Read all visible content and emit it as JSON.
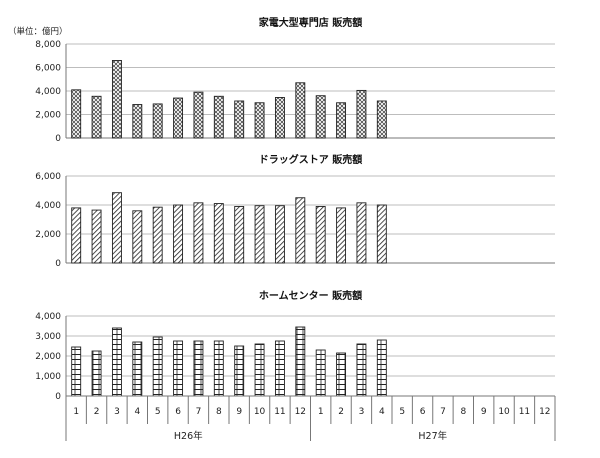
{
  "unit_label": "（単位：億円）",
  "chart_data": [
    {
      "type": "bar",
      "title": "家電大型専門店 販売額",
      "categories": [
        "1",
        "2",
        "3",
        "4",
        "5",
        "6",
        "7",
        "8",
        "9",
        "10",
        "11",
        "12",
        "1",
        "2",
        "3",
        "4",
        "5",
        "6",
        "7",
        "8",
        "9",
        "10",
        "11",
        "12"
      ],
      "values": [
        4100,
        3550,
        6600,
        2850,
        2900,
        3400,
        3900,
        3550,
        3150,
        3000,
        3450,
        4700,
        3600,
        3000,
        4050,
        3150,
        null,
        null,
        null,
        null,
        null,
        null,
        null,
        null
      ],
      "ylim": [
        0,
        8000
      ],
      "yticks": [
        "0",
        "2,000",
        "4,000",
        "6,000",
        "8,000"
      ],
      "ytick_values": [
        0,
        2000,
        4000,
        6000,
        8000
      ],
      "pattern": "crosshatch",
      "grid": true
    },
    {
      "type": "bar",
      "title": "ドラッグストア 販売額",
      "categories": [
        "1",
        "2",
        "3",
        "4",
        "5",
        "6",
        "7",
        "8",
        "9",
        "10",
        "11",
        "12",
        "1",
        "2",
        "3",
        "4",
        "5",
        "6",
        "7",
        "8",
        "9",
        "10",
        "11",
        "12"
      ],
      "values": [
        3800,
        3650,
        4850,
        3600,
        3850,
        4000,
        4150,
        4100,
        3900,
        3950,
        3950,
        4500,
        3900,
        3800,
        4150,
        4000,
        null,
        null,
        null,
        null,
        null,
        null,
        null,
        null
      ],
      "ylim": [
        0,
        6000
      ],
      "yticks": [
        "0",
        "2,000",
        "4,000",
        "6,000"
      ],
      "ytick_values": [
        0,
        2000,
        4000,
        6000
      ],
      "pattern": "diagonal",
      "grid": true
    },
    {
      "type": "bar",
      "title": "ホームセンター 販売額",
      "categories": [
        "1",
        "2",
        "3",
        "4",
        "5",
        "6",
        "7",
        "8",
        "9",
        "10",
        "11",
        "12",
        "1",
        "2",
        "3",
        "4",
        "5",
        "6",
        "7",
        "8",
        "9",
        "10",
        "11",
        "12"
      ],
      "values": [
        2450,
        2250,
        3400,
        2700,
        2950,
        2750,
        2750,
        2750,
        2500,
        2600,
        2750,
        3450,
        2300,
        2150,
        2600,
        2800,
        null,
        null,
        null,
        null,
        null,
        null,
        null,
        null
      ],
      "ylim": [
        0,
        4000
      ],
      "yticks": [
        "0",
        "1,000",
        "2,000",
        "3,000",
        "4,000"
      ],
      "ytick_values": [
        0,
        1000,
        2000,
        3000,
        4000
      ],
      "pattern": "brick",
      "grid": true
    }
  ],
  "x_groups": [
    {
      "label": "H26年",
      "from": 0,
      "to": 11
    },
    {
      "label": "H27年",
      "from": 12,
      "to": 23
    }
  ]
}
